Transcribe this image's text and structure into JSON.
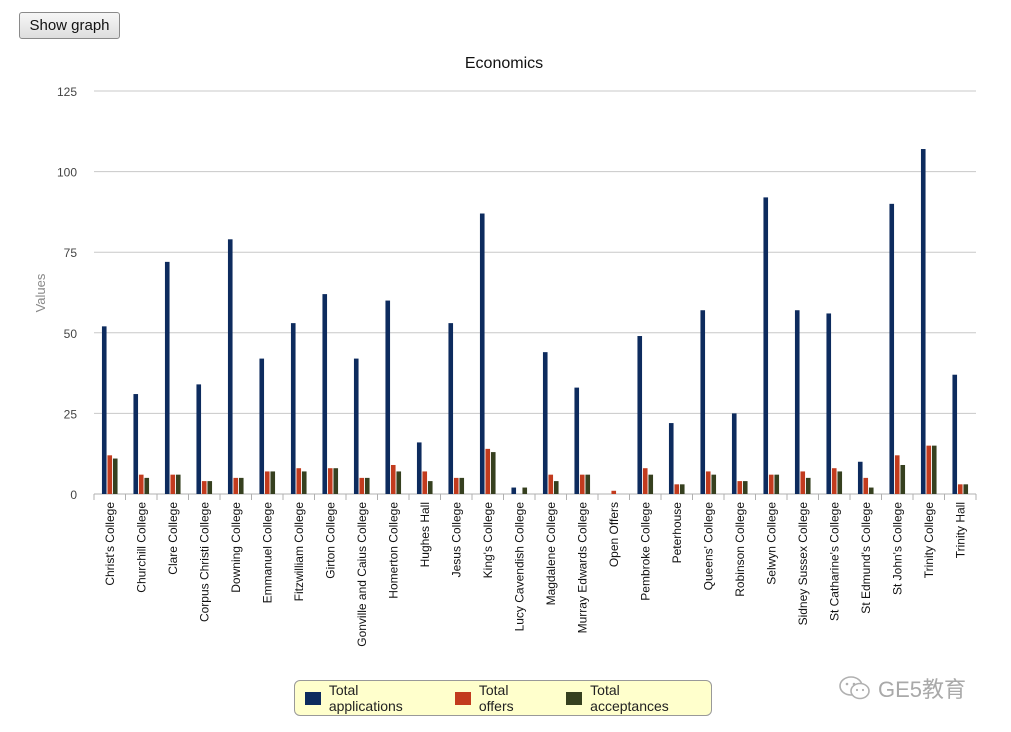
{
  "toolbar": {
    "show_graph_label": "Show graph"
  },
  "watermark": {
    "text": "GE5教育",
    "icon": "wechat-icon"
  },
  "colors": {
    "applications": "#0d2b5e",
    "offers": "#c23b1e",
    "acceptances": "#36401f",
    "grid": "#c8c8c8",
    "legend_bg": "#ffffcc"
  },
  "chart_data": {
    "type": "bar",
    "title": "Economics",
    "xlabel": "",
    "ylabel": "Values",
    "ylim": [
      0,
      125
    ],
    "yticks": [
      0,
      25,
      50,
      75,
      100,
      125
    ],
    "grid": true,
    "legend_position": "bottom",
    "categories": [
      "Christ's College",
      "Churchill College",
      "Clare College",
      "Corpus Christi College",
      "Downing College",
      "Emmanuel College",
      "Fitzwilliam College",
      "Girton College",
      "Gonville and Caius College",
      "Homerton College",
      "Hughes Hall",
      "Jesus College",
      "King's College",
      "Lucy Cavendish College",
      "Magdalene College",
      "Murray Edwards College",
      "Open Offers",
      "Pembroke College",
      "Peterhouse",
      "Queens' College",
      "Robinson College",
      "Selwyn College",
      "Sidney Sussex College",
      "St Catharine's College",
      "St Edmund's College",
      "St John's College",
      "Trinity College",
      "Trinity Hall"
    ],
    "series": [
      {
        "name": "Total applications",
        "values": [
          52,
          31,
          72,
          34,
          79,
          42,
          53,
          62,
          42,
          60,
          16,
          53,
          87,
          2,
          44,
          33,
          0,
          49,
          22,
          57,
          25,
          92,
          57,
          56,
          10,
          90,
          107,
          37
        ]
      },
      {
        "name": "Total offers",
        "values": [
          12,
          6,
          6,
          4,
          5,
          7,
          8,
          8,
          5,
          9,
          7,
          5,
          14,
          0,
          6,
          6,
          1,
          8,
          3,
          7,
          4,
          6,
          7,
          8,
          5,
          12,
          15,
          3
        ]
      },
      {
        "name": "Total acceptances",
        "values": [
          11,
          5,
          6,
          4,
          5,
          7,
          7,
          8,
          5,
          7,
          4,
          5,
          13,
          2,
          4,
          6,
          0,
          6,
          3,
          6,
          4,
          6,
          5,
          7,
          2,
          9,
          15,
          3
        ]
      }
    ]
  }
}
